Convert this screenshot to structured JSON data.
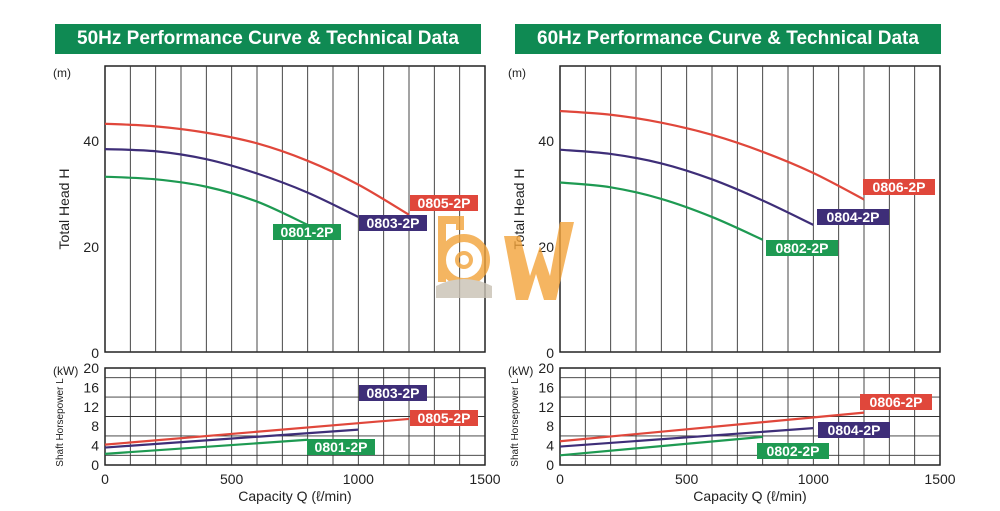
{
  "chart_data": [
    {
      "type": "line",
      "title": "50Hz Performance Curve & Technical Data",
      "colors": {
        "title_bg": "#0f8a53"
      },
      "head": {
        "ylabel": "Total Head H",
        "unit": "(m)",
        "ylim": [
          0,
          54
        ],
        "yticks": [
          0,
          20,
          40
        ],
        "series": [
          {
            "name": "0805-2P",
            "color": "#e0473b",
            "x": [
              0,
              200,
              400,
              600,
              800,
              1000,
              1200
            ],
            "y": [
              43.1,
              42.6,
              41.4,
              39.4,
              36.1,
              31.6,
              25.9
            ]
          },
          {
            "name": "0803-2P",
            "color": "#3e2e78",
            "x": [
              0,
              200,
              400,
              600,
              800,
              1000
            ],
            "y": [
              38.3,
              37.9,
              36.4,
              33.7,
              30.1,
              25.5
            ]
          },
          {
            "name": "0801-2P",
            "color": "#1e9a52",
            "x": [
              0,
              200,
              400,
              600,
              800
            ],
            "y": [
              33.1,
              32.6,
              31.2,
              28.4,
              24.0
            ]
          }
        ]
      },
      "power": {
        "ylabel": "Shaft Horsepower L",
        "unit": "(kW)",
        "ylim": [
          0,
          20
        ],
        "yticks": [
          0,
          4,
          8,
          12,
          16,
          20
        ],
        "series": [
          {
            "name": "0805-2P",
            "color": "#e0473b",
            "x": [
              0,
              1200
            ],
            "y": [
              4.2,
              9.5
            ]
          },
          {
            "name": "0803-2P",
            "color": "#3e2e78",
            "x": [
              0,
              1000
            ],
            "y": [
              3.6,
              7.3
            ]
          },
          {
            "name": "0801-2P",
            "color": "#1e9a52",
            "x": [
              0,
              800
            ],
            "y": [
              2.3,
              5.2
            ]
          }
        ]
      },
      "xlabel": "Capacity Q  (ℓ/min)",
      "xlim": [
        0,
        1500
      ],
      "xticks": [
        0,
        500,
        1000,
        1500
      ]
    },
    {
      "type": "line",
      "title": "60Hz Performance Curve & Technical Data",
      "colors": {
        "title_bg": "#0f8a53"
      },
      "head": {
        "ylabel": "Total Head H",
        "unit": "(m)",
        "ylim": [
          0,
          54
        ],
        "yticks": [
          0,
          20,
          40
        ],
        "series": [
          {
            "name": "0806-2P",
            "color": "#e0473b",
            "x": [
              0,
              200,
              400,
              600,
              800,
              1000,
              1200
            ],
            "y": [
              45.5,
              44.8,
              43.3,
              41.0,
              37.8,
              33.8,
              28.8
            ]
          },
          {
            "name": "0804-2P",
            "color": "#3e2e78",
            "x": [
              0,
              200,
              400,
              600,
              800,
              1000
            ],
            "y": [
              38.2,
              37.4,
              35.6,
              32.6,
              28.6,
              24.0
            ]
          },
          {
            "name": "0802-2P",
            "color": "#1e9a52",
            "x": [
              0,
              200,
              400,
              600,
              800
            ],
            "y": [
              32.0,
              31.1,
              28.9,
              25.5,
              21.2
            ]
          }
        ]
      },
      "power": {
        "ylabel": "Shaft Horsepower L",
        "unit": "(kW)",
        "ylim": [
          0,
          20
        ],
        "yticks": [
          0,
          4,
          8,
          12,
          16,
          20
        ],
        "series": [
          {
            "name": "0806-2P",
            "color": "#e0473b",
            "x": [
              0,
              1200
            ],
            "y": [
              4.9,
              10.8
            ]
          },
          {
            "name": "0804-2P",
            "color": "#3e2e78",
            "x": [
              0,
              1000
            ],
            "y": [
              3.8,
              7.6
            ]
          },
          {
            "name": "0802-2P",
            "color": "#1e9a52",
            "x": [
              0,
              800
            ],
            "y": [
              2.0,
              5.8
            ]
          }
        ]
      },
      "xlabel": "Capacity Q  (ℓ/min)",
      "xlim": [
        0,
        1500
      ],
      "xticks": [
        0,
        500,
        1000,
        1500
      ]
    }
  ]
}
